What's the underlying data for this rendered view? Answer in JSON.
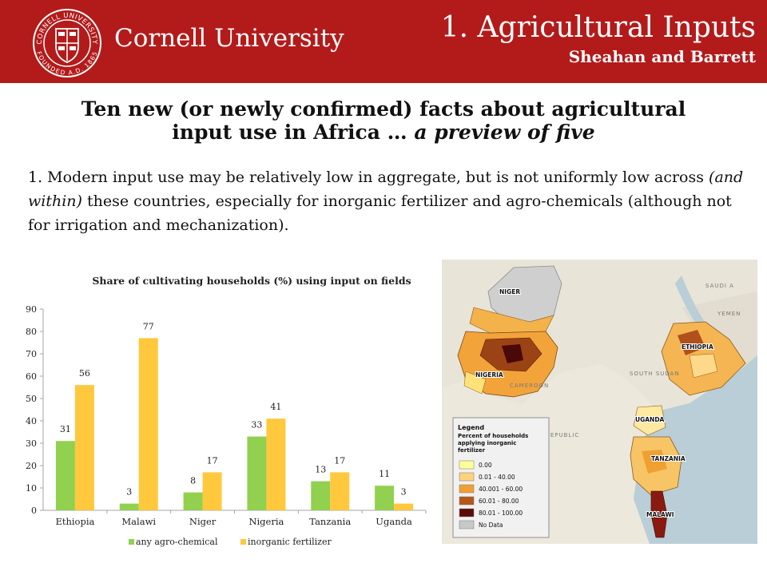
{
  "header": {
    "university": "Cornell University",
    "seal_text_top": "CORNELL UNIVERSITY",
    "seal_text_bottom": "FOUNDED A.D. 1865",
    "title": "1. Agricultural Inputs",
    "subtitle": "Sheahan and Barrett"
  },
  "headline": {
    "line1": "Ten new (or newly confirmed) facts about agricultural",
    "line2_plain": "input use in Africa … ",
    "line2_italic": "a preview of five"
  },
  "body": {
    "part1": "1. Modern input use may be relatively low in aggregate, but is not uniformly low across ",
    "italic": "(and within)",
    "part2": " these countries, especially for inorganic fertilizer and agro-chemicals (although not for irrigation and mechanization)."
  },
  "chart_data": {
    "type": "bar",
    "title": "Share of  cultivating households (%) using input on fields",
    "categories": [
      "Ethiopia",
      "Malawi",
      "Niger",
      "Nigeria",
      "Tanzania",
      "Uganda"
    ],
    "series": [
      {
        "name": "any agro-chemical",
        "values": [
          31,
          3,
          8,
          33,
          13,
          11
        ],
        "color": "#92d050"
      },
      {
        "name": "inorganic fertilizer",
        "values": [
          56,
          77,
          17,
          41,
          17,
          3
        ],
        "color": "#ffc83d"
      }
    ],
    "ylim": [
      0,
      90
    ],
    "yticks": [
      0,
      10,
      20,
      30,
      40,
      50,
      60,
      70,
      80,
      90
    ],
    "legend_position": "bottom",
    "grid": false
  },
  "map": {
    "country_labels": [
      "NIGER",
      "NIGERIA",
      "ETHIOPIA",
      "UGANDA",
      "TANZANIA",
      "MALAWI"
    ],
    "background_labels": [
      "SAUDI A",
      "SOUTH SUDAN",
      "CAMEROON",
      "YEMEN",
      "REPUBLIC"
    ],
    "legend": {
      "title_lines": [
        "Legend",
        "Percent of households",
        "applying inorganic",
        "fertilizer"
      ],
      "items": [
        {
          "label": "0.00",
          "color": "#ffff99"
        },
        {
          "label": "0.01 - 40.00",
          "color": "#ffd27a"
        },
        {
          "label": "40.001 - 60.00",
          "color": "#f0a030"
        },
        {
          "label": "60.01 - 80.00",
          "color": "#b5561a"
        },
        {
          "label": "80.01 - 100.00",
          "color": "#5c0a0a"
        },
        {
          "label": "No Data",
          "color": "#c8c8c8"
        }
      ]
    }
  }
}
